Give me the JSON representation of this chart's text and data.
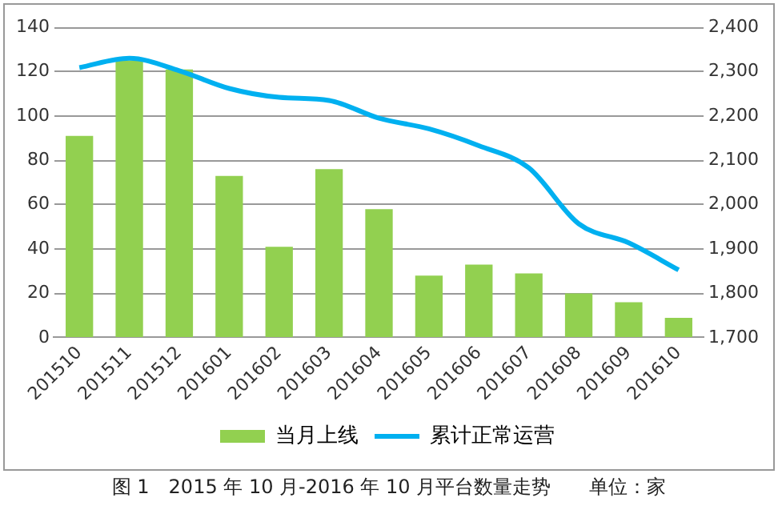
{
  "chart_data": {
    "type": "bar",
    "categories": [
      "201510",
      "201511",
      "201512",
      "201601",
      "201602",
      "201603",
      "201604",
      "201605",
      "201606",
      "201607",
      "201608",
      "201609",
      "201610"
    ],
    "series": [
      {
        "name": "当月上线",
        "color": "#92d050",
        "values": [
          91,
          125,
          121,
          73,
          41,
          76,
          58,
          28,
          33,
          29,
          20,
          16,
          9
        ]
      },
      {
        "name": "累计正常运营",
        "type": "line",
        "axis": "y2",
        "color": "#00b0f0",
        "values": [
          2309,
          2330,
          2302,
          2262,
          2242,
          2235,
          2195,
          2171,
          2133,
          2083,
          1957,
          1914,
          1853
        ]
      }
    ],
    "ylim": [
      0,
      140
    ],
    "yticks": [
      0,
      20,
      40,
      60,
      80,
      100,
      120,
      140
    ],
    "y2lim": [
      1700,
      2400
    ],
    "y2ticks": [
      {
        "value": 1700,
        "label": "1,700"
      },
      {
        "value": 1800,
        "label": "1,800"
      },
      {
        "value": 1900,
        "label": "1,900"
      },
      {
        "value": 2000,
        "label": "2,000"
      },
      {
        "value": 2100,
        "label": "2,100"
      },
      {
        "value": 2200,
        "label": "2,200"
      },
      {
        "value": 2300,
        "label": "2,300"
      },
      {
        "value": 2400,
        "label": "2,400"
      }
    ],
    "grid": "y",
    "legend": "bottom",
    "marker": "none",
    "annotations": [
      "图 1　2015 年 10 月-2016 年 10 月平台数量走势　　单位：家"
    ]
  }
}
